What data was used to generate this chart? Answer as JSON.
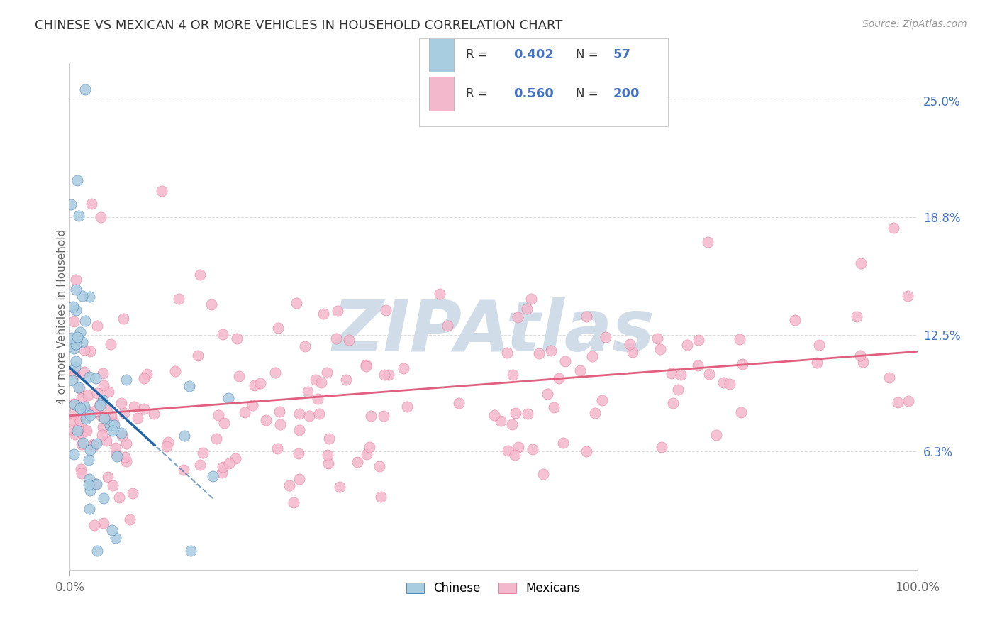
{
  "title": "CHINESE VS MEXICAN 4 OR MORE VEHICLES IN HOUSEHOLD CORRELATION CHART",
  "source_text": "Source: ZipAtlas.com",
  "ylabel": "4 or more Vehicles in Household",
  "xlim": [
    0,
    100
  ],
  "ylim": [
    0,
    27
  ],
  "ytick_labels_right": [
    "6.3%",
    "12.5%",
    "18.8%",
    "25.0%"
  ],
  "ytick_values_right": [
    6.3,
    12.5,
    18.8,
    25.0
  ],
  "legend_R1": "0.402",
  "legend_N1": "57",
  "legend_R2": "0.560",
  "legend_N2": "200",
  "chinese_color": "#a8cce0",
  "mexican_color": "#f4b8cc",
  "chinese_line_color": "#2165a8",
  "mexican_line_color": "#e06080",
  "watermark_text": "ZIPAtlas",
  "watermark_color": "#d0dce8",
  "background_color": "#ffffff",
  "grid_color": "#e8e8e8",
  "legend_text_color": "#333333",
  "legend_value_color": "#4472c4",
  "right_axis_color": "#4472c4",
  "source_color": "#999999",
  "title_color": "#333333"
}
